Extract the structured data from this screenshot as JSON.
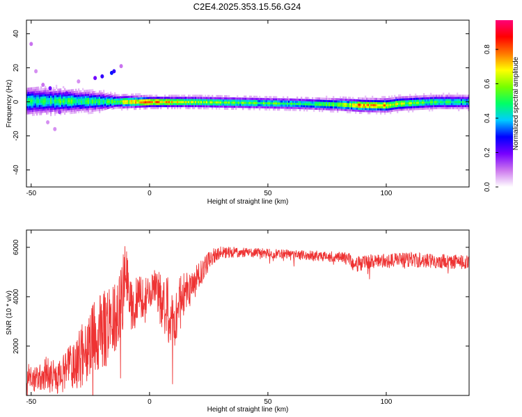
{
  "title": "C2E4.2025.353.15.56.G24",
  "chart_data": [
    {
      "type": "heatmap",
      "xlabel": "Height of straight line (km)",
      "ylabel": "Frequency (Hz)",
      "xlim": [
        -52,
        135
      ],
      "ylim": [
        -50,
        48
      ],
      "xticks": [
        -50,
        0,
        50,
        100
      ],
      "yticks": [
        -40,
        -20,
        0,
        20,
        40
      ],
      "colorbar": {
        "label": "Normalized spectral amplitude",
        "range": [
          0.0,
          0.97
        ],
        "ticks": [
          0.0,
          0.2,
          0.4,
          0.6,
          0.8
        ],
        "tick_labels": [
          "0.0",
          "0.2",
          "0.4",
          "0.6",
          "0.8"
        ],
        "colors": [
          "#ffffff",
          "#cc77ee",
          "#7700ff",
          "#0000ff",
          "#00ccff",
          "#00ff66",
          "#77ff00",
          "#ffff00",
          "#ff7700",
          "#ff0000",
          "#ff0077"
        ]
      },
      "ridge": {
        "center_freq_hz": [
          [
            -52,
            0.5
          ],
          [
            -30,
            0.5
          ],
          [
            -15,
            0.2
          ],
          [
            0,
            0.0
          ],
          [
            20,
            0.0
          ],
          [
            40,
            -0.5
          ],
          [
            60,
            -1.0
          ],
          [
            80,
            -1.5
          ],
          [
            90,
            -2.0
          ],
          [
            100,
            -2.0
          ],
          [
            105,
            -1.0
          ],
          [
            120,
            0.0
          ],
          [
            135,
            0.0
          ]
        ],
        "peak_amplitude": [
          [
            -52,
            0.45
          ],
          [
            -40,
            0.5
          ],
          [
            -20,
            0.5
          ],
          [
            -10,
            0.65
          ],
          [
            0,
            0.8
          ],
          [
            10,
            0.7
          ],
          [
            20,
            0.6
          ],
          [
            40,
            0.55
          ],
          [
            60,
            0.5
          ],
          [
            80,
            0.55
          ],
          [
            90,
            0.8
          ],
          [
            100,
            0.7
          ],
          [
            110,
            0.55
          ],
          [
            135,
            0.45
          ]
        ],
        "spread_hz": [
          [
            -52,
            6
          ],
          [
            -35,
            5
          ],
          [
            -20,
            4
          ],
          [
            -15,
            3
          ],
          [
            0,
            2.5
          ],
          [
            60,
            2.5
          ],
          [
            100,
            3
          ],
          [
            135,
            3
          ]
        ]
      },
      "scattered_features": [
        {
          "x": -50,
          "y": 34,
          "amplitude": 0.1
        },
        {
          "x": -48,
          "y": 18,
          "amplitude": 0.08
        },
        {
          "x": -45,
          "y": 10,
          "amplitude": 0.1
        },
        {
          "x": -42,
          "y": 8,
          "amplitude": 0.2
        },
        {
          "x": -38,
          "y": -6,
          "amplitude": 0.15
        },
        {
          "x": -35,
          "y": 5,
          "amplitude": 0.2
        },
        {
          "x": -30,
          "y": 12,
          "amplitude": 0.08
        },
        {
          "x": -29,
          "y": -3,
          "amplitude": 0.25
        },
        {
          "x": -23,
          "y": 14,
          "amplitude": 0.2
        },
        {
          "x": -20,
          "y": 15,
          "amplitude": 0.25
        },
        {
          "x": -16,
          "y": 17,
          "amplitude": 0.3
        },
        {
          "x": -15,
          "y": 18,
          "amplitude": 0.25
        },
        {
          "x": -12,
          "y": 21,
          "amplitude": 0.1
        },
        {
          "x": -43,
          "y": -12,
          "amplitude": 0.08
        },
        {
          "x": -40,
          "y": -16,
          "amplitude": 0.08
        }
      ]
    },
    {
      "type": "line",
      "xlabel": "Height of straight line (km)",
      "ylabel": "SNR (10 * v/v)",
      "xlim": [
        -52,
        135
      ],
      "ylim": [
        0,
        6700
      ],
      "xticks": [
        -50,
        0,
        50,
        100
      ],
      "yticks": [
        2000,
        4000,
        6000
      ],
      "color": "#ee3333",
      "series": [
        {
          "name": "SNR",
          "x": [
            -52,
            -48,
            -44,
            -40,
            -36,
            -32,
            -28,
            -24,
            -20,
            -16,
            -12,
            -10,
            -8,
            -4,
            0,
            2,
            4,
            6,
            8,
            10,
            14,
            18,
            22,
            26,
            30,
            40,
            50,
            60,
            70,
            80,
            84,
            86,
            90,
            100,
            110,
            120,
            135
          ],
          "y": [
            800,
            600,
            900,
            700,
            1000,
            1100,
            1700,
            2200,
            2600,
            3000,
            3600,
            5200,
            3500,
            4000,
            4100,
            4400,
            4000,
            3700,
            3500,
            3000,
            4000,
            4400,
            5000,
            5600,
            5800,
            5800,
            5750,
            5700,
            5650,
            5600,
            5550,
            5250,
            5400,
            5450,
            5500,
            5450,
            5400
          ],
          "noise_amplitude": [
            550,
            550,
            700,
            700,
            800,
            1100,
            1300,
            1500,
            1600,
            1600,
            1600,
            1200,
            1100,
            900,
            700,
            700,
            1000,
            1300,
            1400,
            1300,
            1000,
            700,
            500,
            350,
            250,
            200,
            200,
            200,
            220,
            220,
            250,
            350,
            300,
            300,
            300,
            300,
            300
          ]
        }
      ]
    }
  ]
}
